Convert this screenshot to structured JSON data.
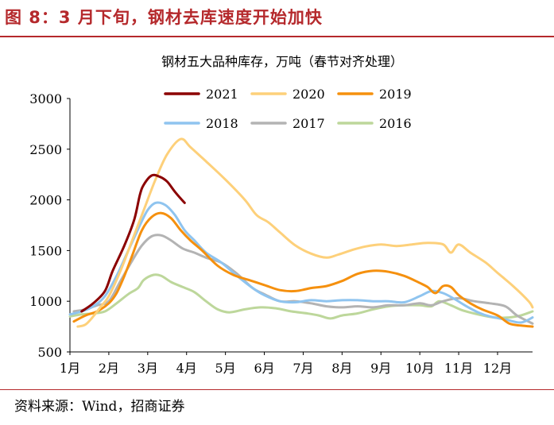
{
  "figure": {
    "title": "图 8：3 月下旬，钢材去库速度开始加快",
    "source": "资料来源：Wind，招商证券"
  },
  "colors": {
    "accent": "#b5292c",
    "2021": "#8b0000",
    "2020": "#fdd07a",
    "2019": "#f5900e",
    "2018": "#8fc4ef",
    "2017": "#b3b3b3",
    "2016": "#bdd79b"
  },
  "chart_data": {
    "type": "line",
    "title": "钢材五大品种库存，万吨（春节对齐处理）",
    "xlabel": "",
    "ylabel": "",
    "x_unit": "month (1 = 1月 start)",
    "xlim": [
      1,
      12.9
    ],
    "ylim": [
      500,
      3000
    ],
    "yticks": [
      500,
      1000,
      1500,
      2000,
      2500,
      3000
    ],
    "ytick_labels": [
      "500",
      "1000",
      "1500",
      "2000",
      "2500",
      "3000"
    ],
    "xticks": [
      1,
      2,
      3,
      4,
      5,
      6,
      7,
      8,
      9,
      10,
      11,
      12
    ],
    "xtick_labels": [
      "1月",
      "2月",
      "3月",
      "4月",
      "5月",
      "6月",
      "7月",
      "8月",
      "9月",
      "10月",
      "11月",
      "12月"
    ],
    "grid": false,
    "legend": "top-center, two rows",
    "series": [
      {
        "name": "2021",
        "color": "#8b0000",
        "width": 3,
        "points": [
          [
            1.3,
            900
          ],
          [
            1.6,
            980
          ],
          [
            1.9,
            1100
          ],
          [
            2.1,
            1300
          ],
          [
            2.4,
            1550
          ],
          [
            2.65,
            1800
          ],
          [
            2.8,
            2050
          ],
          [
            2.9,
            2150
          ],
          [
            3.1,
            2240
          ],
          [
            3.3,
            2230
          ],
          [
            3.5,
            2180
          ],
          [
            3.7,
            2080
          ],
          [
            3.95,
            1970
          ]
        ]
      },
      {
        "name": "2020",
        "color": "#fdd07a",
        "width": 3,
        "points": [
          [
            1.2,
            750
          ],
          [
            1.4,
            770
          ],
          [
            1.6,
            850
          ],
          [
            1.8,
            950
          ],
          [
            2.0,
            1050
          ],
          [
            2.3,
            1300
          ],
          [
            2.6,
            1600
          ],
          [
            2.9,
            1900
          ],
          [
            3.2,
            2200
          ],
          [
            3.5,
            2450
          ],
          [
            3.85,
            2600
          ],
          [
            4.1,
            2520
          ],
          [
            4.5,
            2380
          ],
          [
            5.0,
            2200
          ],
          [
            5.5,
            2000
          ],
          [
            5.8,
            1850
          ],
          [
            6.1,
            1780
          ],
          [
            6.4,
            1680
          ],
          [
            6.8,
            1550
          ],
          [
            7.2,
            1470
          ],
          [
            7.6,
            1430
          ],
          [
            7.9,
            1460
          ],
          [
            8.3,
            1510
          ],
          [
            8.6,
            1540
          ],
          [
            9.0,
            1560
          ],
          [
            9.4,
            1545
          ],
          [
            9.8,
            1560
          ],
          [
            10.2,
            1575
          ],
          [
            10.6,
            1560
          ],
          [
            10.8,
            1480
          ],
          [
            11.0,
            1560
          ],
          [
            11.3,
            1480
          ],
          [
            11.7,
            1380
          ],
          [
            12.0,
            1280
          ],
          [
            12.4,
            1150
          ],
          [
            12.8,
            1000
          ],
          [
            12.9,
            940
          ]
        ]
      },
      {
        "name": "2019",
        "color": "#f5900e",
        "width": 3,
        "points": [
          [
            1.1,
            800
          ],
          [
            1.4,
            860
          ],
          [
            1.7,
            900
          ],
          [
            2.0,
            980
          ],
          [
            2.2,
            1080
          ],
          [
            2.4,
            1250
          ],
          [
            2.6,
            1450
          ],
          [
            2.85,
            1700
          ],
          [
            3.1,
            1830
          ],
          [
            3.35,
            1870
          ],
          [
            3.6,
            1820
          ],
          [
            3.85,
            1700
          ],
          [
            4.1,
            1600
          ],
          [
            4.4,
            1500
          ],
          [
            4.8,
            1350
          ],
          [
            5.2,
            1260
          ],
          [
            5.6,
            1210
          ],
          [
            6.0,
            1160
          ],
          [
            6.4,
            1110
          ],
          [
            6.8,
            1100
          ],
          [
            7.2,
            1130
          ],
          [
            7.6,
            1150
          ],
          [
            8.0,
            1200
          ],
          [
            8.4,
            1270
          ],
          [
            8.8,
            1300
          ],
          [
            9.2,
            1290
          ],
          [
            9.6,
            1250
          ],
          [
            10.0,
            1180
          ],
          [
            10.2,
            1140
          ],
          [
            10.4,
            1080
          ],
          [
            10.6,
            1150
          ],
          [
            10.8,
            1140
          ],
          [
            11.0,
            1060
          ],
          [
            11.3,
            980
          ],
          [
            11.6,
            920
          ],
          [
            12.0,
            860
          ],
          [
            12.3,
            780
          ],
          [
            12.6,
            760
          ],
          [
            12.9,
            750
          ]
        ]
      },
      {
        "name": "2018",
        "color": "#8fc4ef",
        "width": 3,
        "points": [
          [
            1.0,
            870
          ],
          [
            1.3,
            900
          ],
          [
            1.6,
            950
          ],
          [
            1.9,
            1050
          ],
          [
            2.2,
            1250
          ],
          [
            2.5,
            1500
          ],
          [
            2.8,
            1750
          ],
          [
            3.0,
            1900
          ],
          [
            3.2,
            1970
          ],
          [
            3.45,
            1950
          ],
          [
            3.7,
            1850
          ],
          [
            3.95,
            1700
          ],
          [
            4.2,
            1600
          ],
          [
            4.5,
            1480
          ],
          [
            4.9,
            1380
          ],
          [
            5.3,
            1250
          ],
          [
            5.7,
            1130
          ],
          [
            6.0,
            1060
          ],
          [
            6.4,
            1000
          ],
          [
            6.8,
            990
          ],
          [
            7.2,
            1010
          ],
          [
            7.6,
            1000
          ],
          [
            8.0,
            1010
          ],
          [
            8.4,
            1010
          ],
          [
            8.8,
            1000
          ],
          [
            9.2,
            1000
          ],
          [
            9.6,
            990
          ],
          [
            10.0,
            1050
          ],
          [
            10.3,
            1100
          ],
          [
            10.6,
            1080
          ],
          [
            10.9,
            1020
          ],
          [
            11.2,
            950
          ],
          [
            11.5,
            890
          ],
          [
            11.8,
            850
          ],
          [
            12.2,
            820
          ],
          [
            12.6,
            790
          ],
          [
            12.9,
            840
          ]
        ]
      },
      {
        "name": "2017",
        "color": "#b3b3b3",
        "width": 3,
        "points": [
          [
            1.1,
            900
          ],
          [
            1.4,
            920
          ],
          [
            1.7,
            960
          ],
          [
            2.0,
            1000
          ],
          [
            2.3,
            1200
          ],
          [
            2.6,
            1400
          ],
          [
            2.85,
            1550
          ],
          [
            3.1,
            1640
          ],
          [
            3.35,
            1650
          ],
          [
            3.6,
            1600
          ],
          [
            3.9,
            1520
          ],
          [
            4.2,
            1480
          ],
          [
            4.5,
            1430
          ],
          [
            4.9,
            1380
          ],
          [
            5.3,
            1270
          ],
          [
            5.7,
            1130
          ],
          [
            6.0,
            1070
          ],
          [
            6.4,
            1000
          ],
          [
            6.8,
            1000
          ],
          [
            7.2,
            980
          ],
          [
            7.6,
            950
          ],
          [
            8.0,
            940
          ],
          [
            8.4,
            950
          ],
          [
            8.8,
            940
          ],
          [
            9.2,
            960
          ],
          [
            9.6,
            960
          ],
          [
            10.0,
            980
          ],
          [
            10.3,
            960
          ],
          [
            10.6,
            1000
          ],
          [
            11.0,
            1030
          ],
          [
            11.4,
            1000
          ],
          [
            11.8,
            980
          ],
          [
            12.2,
            950
          ],
          [
            12.5,
            860
          ],
          [
            12.9,
            780
          ]
        ]
      },
      {
        "name": "2016",
        "color": "#bdd79b",
        "width": 3,
        "points": [
          [
            1.0,
            850
          ],
          [
            1.3,
            870
          ],
          [
            1.6,
            880
          ],
          [
            1.9,
            900
          ],
          [
            2.2,
            980
          ],
          [
            2.5,
            1070
          ],
          [
            2.75,
            1130
          ],
          [
            2.9,
            1210
          ],
          [
            3.15,
            1260
          ],
          [
            3.35,
            1250
          ],
          [
            3.6,
            1190
          ],
          [
            3.9,
            1140
          ],
          [
            4.2,
            1090
          ],
          [
            4.5,
            1000
          ],
          [
            4.8,
            920
          ],
          [
            5.1,
            890
          ],
          [
            5.5,
            920
          ],
          [
            5.9,
            940
          ],
          [
            6.3,
            930
          ],
          [
            6.7,
            900
          ],
          [
            7.1,
            880
          ],
          [
            7.4,
            860
          ],
          [
            7.7,
            830
          ],
          [
            8.0,
            860
          ],
          [
            8.4,
            880
          ],
          [
            8.8,
            920
          ],
          [
            9.2,
            950
          ],
          [
            9.6,
            960
          ],
          [
            10.0,
            960
          ],
          [
            10.3,
            950
          ],
          [
            10.5,
            1000
          ],
          [
            10.8,
            960
          ],
          [
            11.1,
            910
          ],
          [
            11.5,
            870
          ],
          [
            11.9,
            840
          ],
          [
            12.3,
            840
          ],
          [
            12.6,
            860
          ],
          [
            12.9,
            900
          ]
        ]
      }
    ]
  }
}
